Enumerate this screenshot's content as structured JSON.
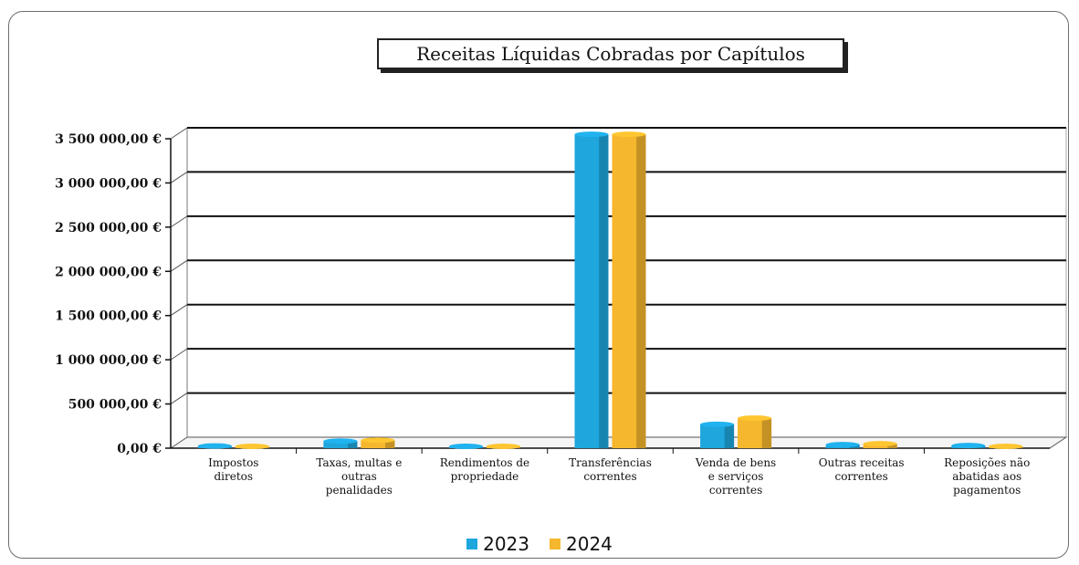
{
  "chart_data": {
    "type": "bar",
    "title": "Receitas Líquidas Cobradas por Capítulos",
    "categories": [
      [
        "Impostos",
        "diretos"
      ],
      [
        "Taxas, multas e",
        "outras",
        "penalidades"
      ],
      [
        "Rendimentos de",
        "propriedade"
      ],
      [
        "Transferências",
        "correntes"
      ],
      [
        "Venda de bens",
        "e serviços",
        "correntes"
      ],
      [
        "Outras receitas",
        "correntes"
      ],
      [
        "Reposições não",
        "abatidas aos",
        "pagamentos"
      ]
    ],
    "series": [
      {
        "name": "2023",
        "color": "#1ea6dd",
        "values": [
          25000,
          80000,
          15000,
          3550000,
          270000,
          40000,
          30000
        ]
      },
      {
        "name": "2024",
        "color": "#f5b72d",
        "values": [
          20000,
          90000,
          20000,
          3550000,
          340000,
          50000,
          20000
        ]
      }
    ],
    "yticks": [
      "0,00 €",
      "500 000,00 €",
      "1 000 000,00 €",
      "1 500 000,00 €",
      "2 000 000,00 €",
      "2 500 000,00 €",
      "3 000 000,00 €",
      "3 500 000,00 €"
    ],
    "ylim": [
      0,
      3500000
    ],
    "grid": true,
    "legend_position": "bottom"
  }
}
